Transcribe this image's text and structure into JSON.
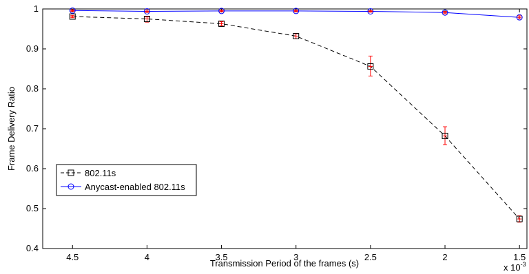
{
  "chart_data": {
    "type": "line",
    "title": "",
    "xlabel": "Transmission Period of the frames (s)",
    "ylabel": "Frame Delivery Ratio",
    "x_multiplier_label": {
      "base": "x 10",
      "exponent": "-3"
    },
    "x_scale": "reversed",
    "xlim": [
      4.7,
      1.45
    ],
    "ylim": [
      0.4,
      1.0
    ],
    "x_ticks": [
      4.5,
      4,
      3.5,
      3,
      2.5,
      2,
      1.5
    ],
    "x_tick_labels": [
      "4.5",
      "4",
      "3.5",
      "3",
      "2.5",
      "2",
      "1.5"
    ],
    "y_ticks": [
      0.4,
      0.5,
      0.6,
      0.7,
      0.8,
      0.9,
      1.0
    ],
    "y_tick_labels": [
      "0.4",
      "0.5",
      "0.6",
      "0.7",
      "0.8",
      "0.9",
      "1"
    ],
    "grid": false,
    "legend_placement": "lower-left",
    "x": [
      4.5,
      4,
      3.5,
      3,
      2.5,
      2,
      1.5
    ],
    "series": [
      {
        "name": "802.11s",
        "color": "#000000",
        "line_style": "dashed",
        "marker": "square",
        "values": [
          0.981,
          0.975,
          0.963,
          0.932,
          0.856,
          0.682,
          0.474
        ],
        "error_low": [
          0.978,
          0.967,
          0.958,
          0.925,
          0.832,
          0.66,
          0.466
        ],
        "error_high": [
          0.984,
          0.98,
          0.968,
          0.938,
          0.882,
          0.705,
          0.482
        ]
      },
      {
        "name": "Anycast-enabled 802.11s",
        "color": "#0000ff",
        "line_style": "solid",
        "marker": "circle",
        "values": [
          0.996,
          0.994,
          0.995,
          0.995,
          0.994,
          0.991,
          0.979
        ],
        "error_low": [
          0.994,
          0.991,
          0.993,
          0.993,
          0.992,
          0.988,
          0.975
        ],
        "error_high": [
          0.998,
          0.997,
          0.997,
          0.997,
          0.996,
          0.994,
          0.983
        ]
      }
    ],
    "error_bar_color": "#ff0000"
  }
}
